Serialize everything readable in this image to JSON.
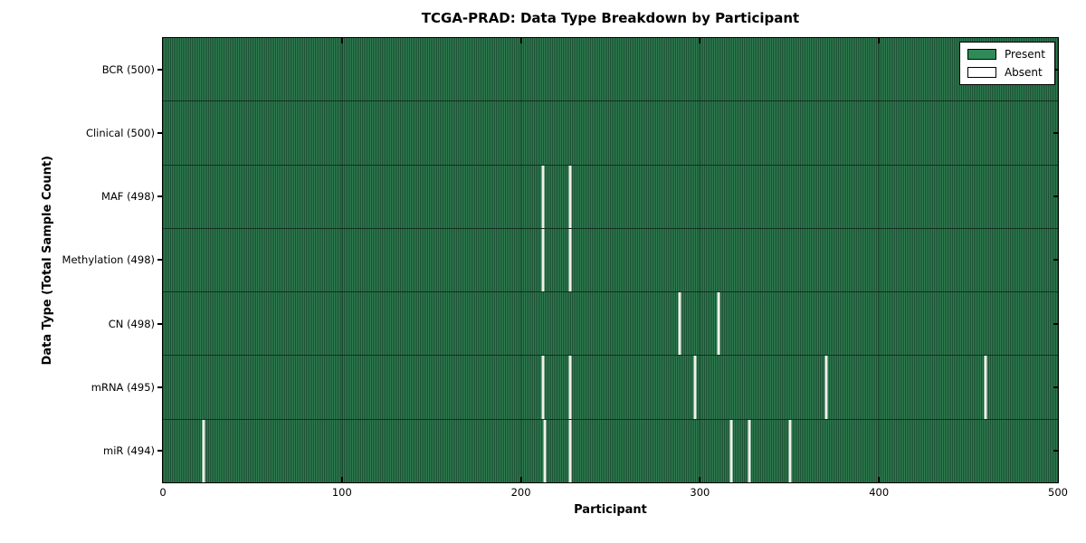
{
  "figure": {
    "title": "TCGA-PRAD: Data Type Breakdown by Participant",
    "xlabel": "Participant",
    "ylabel": "Data Type (Total Sample Count)"
  },
  "chart_data": {
    "type": "heatmap",
    "title": "TCGA-PRAD: Data Type Breakdown by Participant",
    "xlabel": "Participant",
    "ylabel": "Data Type (Total Sample Count)",
    "xlim": [
      0,
      500
    ],
    "x_ticks": [
      0,
      100,
      200,
      300,
      400,
      500
    ],
    "total_participants": 500,
    "grid": false,
    "legend_position": "upper right",
    "colors": {
      "present": "#2e8b57",
      "absent": "#ffffff",
      "bar_edge": "#1c5134"
    },
    "legend": [
      {
        "label": "Present",
        "color": "#2e8b57"
      },
      {
        "label": "Absent",
        "color": "#ffffff"
      }
    ],
    "rows": [
      {
        "data_type": "BCR",
        "label": "BCR (500)",
        "sample_count": 500,
        "absent_participants": []
      },
      {
        "data_type": "Clinical",
        "label": "Clinical (500)",
        "sample_count": 500,
        "absent_participants": []
      },
      {
        "data_type": "MAF",
        "label": "MAF (498)",
        "sample_count": 498,
        "absent_participants": [
          212,
          227
        ]
      },
      {
        "data_type": "Methylation",
        "label": "Methylation (498)",
        "sample_count": 498,
        "absent_participants": [
          212,
          227
        ]
      },
      {
        "data_type": "CN",
        "label": "CN (498)",
        "sample_count": 498,
        "absent_participants": [
          288,
          310
        ]
      },
      {
        "data_type": "mRNA",
        "label": "mRNA (495)",
        "sample_count": 495,
        "absent_participants": [
          212,
          227,
          297,
          370,
          459
        ]
      },
      {
        "data_type": "miR",
        "label": "miR (494)",
        "sample_count": 494,
        "absent_participants": [
          22,
          213,
          227,
          317,
          327,
          350
        ]
      }
    ]
  }
}
